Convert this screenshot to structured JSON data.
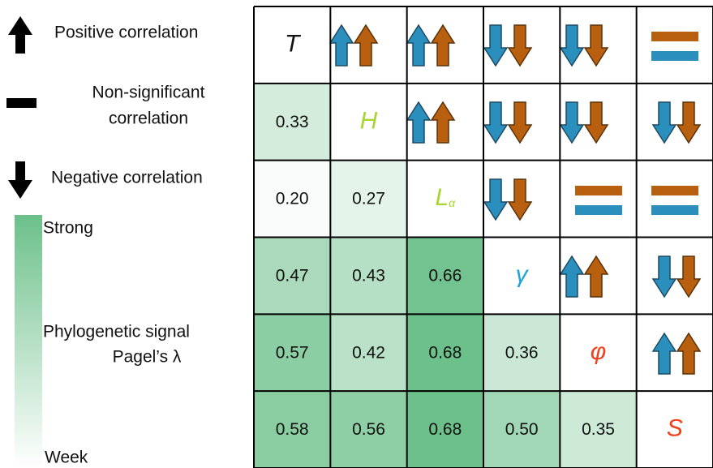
{
  "legend": {
    "positive": "Positive correlation",
    "nonsignificant": [
      "Non-significant",
      "correlation"
    ],
    "negative": "Negative correlation",
    "strong": "Strong",
    "signal": [
      "Phylogenetic signal",
      "Pagel’s λ"
    ],
    "weak": "Week"
  },
  "matrix": {
    "diagonal": [
      {
        "text": "T",
        "color": "#111111"
      },
      {
        "text": "H",
        "color": "#a8d52f"
      },
      {
        "text": "L",
        "subscript": "α",
        "color": "#a8d52f"
      },
      {
        "text": "γ",
        "color": "#1ea5dc"
      },
      {
        "text": "φ",
        "color": "#f0401a"
      },
      {
        "text": "S",
        "color": "#f0401a"
      }
    ],
    "values": [
      [
        "0.33"
      ],
      [
        "0.20",
        "0.27"
      ],
      [
        "0.47",
        "0.43",
        "0.66"
      ],
      [
        "0.57",
        "0.42",
        "0.68",
        "0.36"
      ],
      [
        "0.58",
        "0.56",
        "0.68",
        "0.50",
        "0.35"
      ]
    ]
  }
}
